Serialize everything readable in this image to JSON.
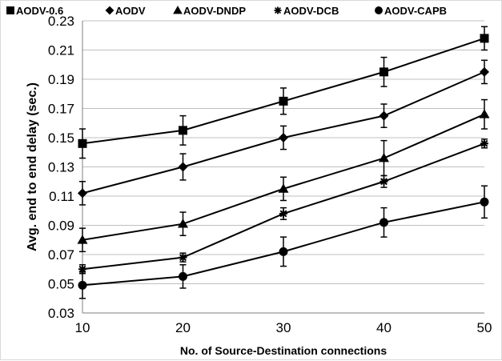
{
  "chart_data": {
    "type": "line",
    "x": [
      10,
      20,
      30,
      40,
      50
    ],
    "xlabel": "No. of Source-Destination connections",
    "ylabel": "Avg. end to end delay (sec.)",
    "xlim": [
      10,
      50
    ],
    "ylim": [
      0.03,
      0.23
    ],
    "x_ticks": [
      "10",
      "20",
      "30",
      "40",
      "50"
    ],
    "y_ticks": [
      "0.03",
      "0.05",
      "0.07",
      "0.09",
      "0.11",
      "0.13",
      "0.15",
      "0.17",
      "0.19",
      "0.21",
      "0.23"
    ],
    "grid": "horizontal",
    "legend_position": "top",
    "series": [
      {
        "name": "AODV-0.6",
        "marker": "square",
        "values": [
          0.146,
          0.155,
          0.175,
          0.195,
          0.218
        ],
        "error": [
          0.01,
          0.01,
          0.009,
          0.01,
          0.008
        ]
      },
      {
        "name": "AODV",
        "marker": "diamond",
        "values": [
          0.112,
          0.13,
          0.15,
          0.165,
          0.195
        ],
        "error": [
          0.008,
          0.009,
          0.008,
          0.008,
          0.008
        ]
      },
      {
        "name": "AODV-DNDP",
        "marker": "triangle",
        "values": [
          0.08,
          0.091,
          0.115,
          0.136,
          0.166
        ],
        "error": [
          0.008,
          0.008,
          0.008,
          0.012,
          0.01
        ]
      },
      {
        "name": "AODV-DCB",
        "marker": "star",
        "values": [
          0.06,
          0.068,
          0.098,
          0.12,
          0.146
        ],
        "error": [
          0.003,
          0.003,
          0.004,
          0.004,
          0.003
        ]
      },
      {
        "name": "AODV-CAPB",
        "marker": "circle",
        "values": [
          0.049,
          0.055,
          0.072,
          0.092,
          0.106
        ],
        "error": [
          0.009,
          0.008,
          0.01,
          0.01,
          0.011
        ]
      }
    ]
  }
}
